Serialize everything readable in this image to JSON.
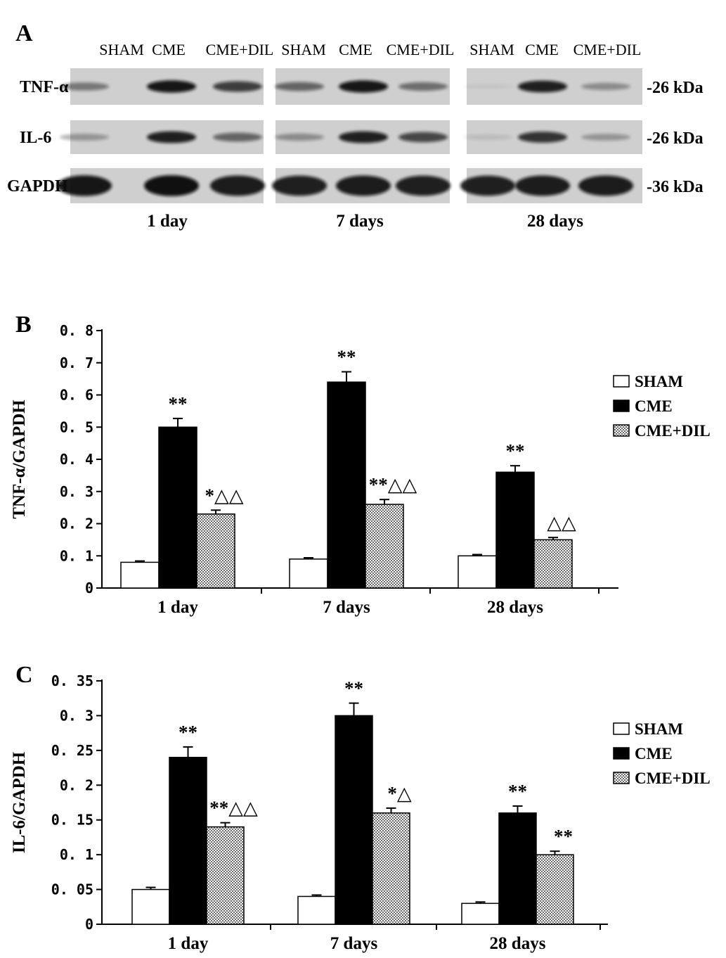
{
  "panel_a": {
    "label": "A",
    "lane_headers": [
      "SHAM",
      "CME",
      "CME+DIL",
      "SHAM",
      "CME",
      "CME+DIL",
      "SHAM",
      "CME",
      "CME+DIL"
    ],
    "rows": [
      {
        "name": "TNF-α",
        "size": "-26 kDa",
        "intensity": [
          [
            0.45,
            0.95,
            0.75
          ],
          [
            0.55,
            0.95,
            0.5
          ],
          [
            0.05,
            0.9,
            0.35
          ]
        ]
      },
      {
        "name": "IL-6",
        "size": "-26 kDa",
        "intensity": [
          [
            0.3,
            0.9,
            0.55
          ],
          [
            0.35,
            0.9,
            0.7
          ],
          [
            0.1,
            0.8,
            0.3
          ]
        ]
      },
      {
        "name": "GAPDH",
        "size": "-36 kDa",
        "intensity": [
          [
            0.95,
            0.98,
            0.92
          ],
          [
            0.9,
            0.92,
            0.9
          ],
          [
            0.9,
            0.92,
            0.92
          ]
        ]
      }
    ],
    "time_labels": [
      "1 day",
      "7 days",
      "28 days"
    ],
    "colors": {
      "membrane": "#cfcfcf",
      "band": "#111111"
    }
  },
  "chart_data": [
    {
      "type": "bar",
      "label": "B",
      "categories": [
        "1 day",
        "7 days",
        "28 days"
      ],
      "ylabel": "TNF-α/GAPDH",
      "ylim": [
        0,
        0.8
      ],
      "yticks": [
        0,
        0.1,
        0.2,
        0.3,
        0.4,
        0.5,
        0.6,
        0.7,
        0.8
      ],
      "ytick_labels": [
        "0",
        "0. 1",
        "0. 2",
        "0. 3",
        "0. 4",
        "0. 5",
        "0. 6",
        "0. 7",
        "0. 8"
      ],
      "legend_position": "right",
      "series": [
        {
          "name": "SHAM",
          "fill": "white",
          "values": [
            0.08,
            0.09,
            0.1
          ],
          "errors": [
            0.004,
            0.004,
            0.004
          ],
          "annotations": [
            "",
            "",
            ""
          ]
        },
        {
          "name": "CME",
          "fill": "black",
          "values": [
            0.5,
            0.64,
            0.36
          ],
          "errors": [
            0.027,
            0.032,
            0.02
          ],
          "annotations": [
            "**",
            "**",
            "**"
          ]
        },
        {
          "name": "CME+DIL",
          "fill": "hatched",
          "values": [
            0.23,
            0.26,
            0.15
          ],
          "errors": [
            0.012,
            0.015,
            0.007
          ],
          "annotations": [
            "*△△",
            "**△△",
            "△△"
          ]
        }
      ]
    },
    {
      "type": "bar",
      "label": "C",
      "categories": [
        "1 day",
        "7 days",
        "28 days"
      ],
      "ylabel": "IL-6/GAPDH",
      "ylim": [
        0,
        0.35
      ],
      "yticks": [
        0,
        0.05,
        0.1,
        0.15,
        0.2,
        0.25,
        0.3,
        0.35
      ],
      "ytick_labels": [
        "0",
        "0. 05",
        "0. 1",
        "0. 15",
        "0. 2",
        "0. 25",
        "0. 3",
        "0. 35"
      ],
      "legend_position": "right",
      "series": [
        {
          "name": "SHAM",
          "fill": "white",
          "values": [
            0.05,
            0.04,
            0.03
          ],
          "errors": [
            0.003,
            0.002,
            0.002
          ],
          "annotations": [
            "",
            "",
            ""
          ]
        },
        {
          "name": "CME",
          "fill": "black",
          "values": [
            0.24,
            0.3,
            0.16
          ],
          "errors": [
            0.015,
            0.018,
            0.01
          ],
          "annotations": [
            "**",
            "**",
            "**"
          ]
        },
        {
          "name": "CME+DIL",
          "fill": "hatched",
          "values": [
            0.14,
            0.16,
            0.1
          ],
          "errors": [
            0.006,
            0.007,
            0.005
          ],
          "annotations": [
            "**△△",
            "*△",
            "**"
          ]
        }
      ]
    }
  ]
}
